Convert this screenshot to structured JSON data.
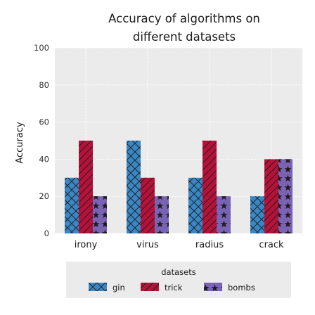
{
  "chart_data": {
    "type": "bar",
    "title": "Accuracy of algorithms on different datasets",
    "title_lines": [
      "Accuracy of algorithms on",
      "different datasets"
    ],
    "xlabel": "",
    "ylabel": "Accuracy",
    "categories": [
      "irony",
      "virus",
      "radius",
      "crack"
    ],
    "series": [
      {
        "name": "gin",
        "values": [
          30,
          50,
          30,
          20
        ],
        "color": "#3a87c4",
        "pattern": "cross-hatch"
      },
      {
        "name": "trick",
        "values": [
          50,
          30,
          50,
          40
        ],
        "color": "#b5123a",
        "pattern": "diagonal"
      },
      {
        "name": "bombs",
        "values": [
          20,
          20,
          20,
          40
        ],
        "color": "#7a63b4",
        "pattern": "stars"
      }
    ],
    "ylim": [
      0,
      100
    ],
    "yticks": [
      0,
      20,
      40,
      60,
      80,
      100
    ],
    "grid": true,
    "legend": {
      "title": "datasets",
      "placement": "bottom-center"
    },
    "background_color": "#ebebeb"
  }
}
